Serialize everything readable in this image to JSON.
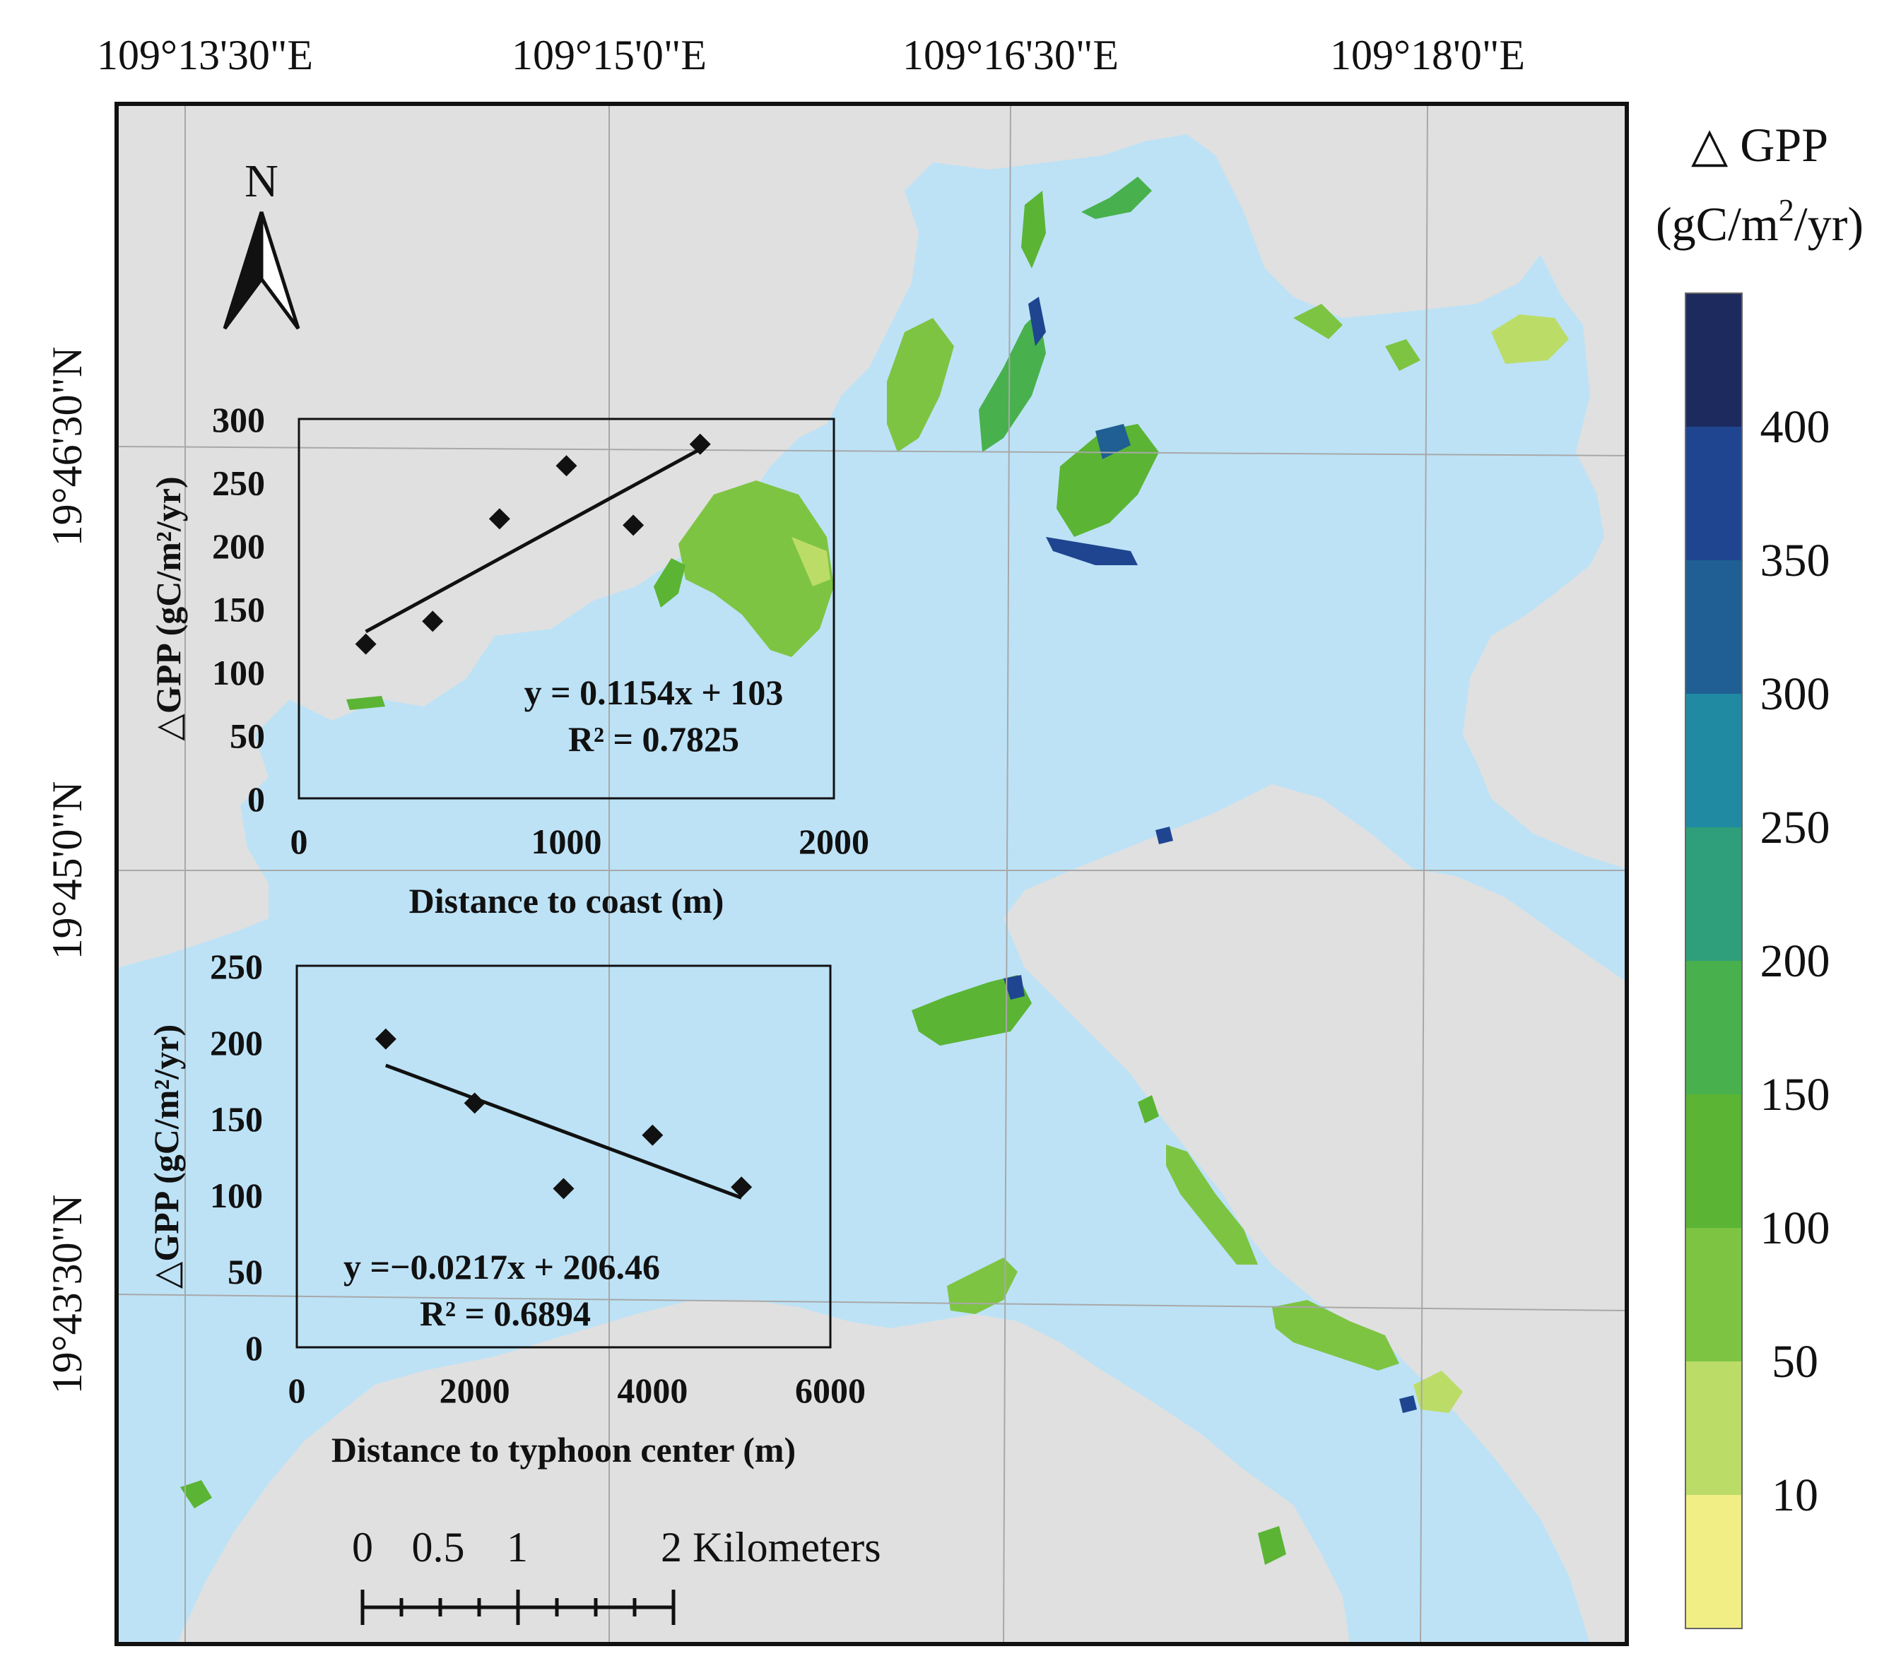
{
  "map": {
    "lon_labels": [
      "109°13'30\"E",
      "109°15'0\"E",
      "109°16'30\"E",
      "109°18'0\"E"
    ],
    "lat_labels": [
      "19°46'30\"N",
      "19°45'0\"N",
      "19°43'30\"N"
    ],
    "north_label": "N",
    "scale_ticks": [
      "0",
      "0.5",
      "1",
      "2 Kilometers"
    ],
    "colors": {
      "land": "#e0e0e0",
      "water": "#bde2f6",
      "grid": "#a8a8a8"
    }
  },
  "legend": {
    "title": "△ GPP",
    "unit_prefix": "(gC/m",
    "unit_sup": "2",
    "unit_suffix": "/yr)",
    "labels": [
      "400",
      "350",
      "300",
      "250",
      "200",
      "150",
      "100",
      "50",
      "10"
    ],
    "colors": [
      "#1c2a5e",
      "#1f4590",
      "#1f5f93",
      "#1f8aa2",
      "#2f9e7b",
      "#48b14d",
      "#5bb434",
      "#7ec443",
      "#bcdc68",
      "#f1ee85"
    ]
  },
  "chart_data": [
    {
      "type": "scatter",
      "xlabel": "Distance to coast (m)",
      "ylabel": "△GPP (gC/m²/yr)",
      "xlim": [
        0,
        2000
      ],
      "ylim": [
        0,
        300
      ],
      "xticks": [
        "0",
        "1000",
        "2000"
      ],
      "yticks": [
        "0",
        "50",
        "100",
        "150",
        "200",
        "250",
        "300"
      ],
      "points": [
        {
          "x": 250,
          "y": 122
        },
        {
          "x": 500,
          "y": 140
        },
        {
          "x": 750,
          "y": 221
        },
        {
          "x": 1000,
          "y": 263
        },
        {
          "x": 1250,
          "y": 216
        },
        {
          "x": 1500,
          "y": 280
        }
      ],
      "trendline": {
        "slope": 0.1154,
        "intercept": 103,
        "x_range": [
          250,
          1500
        ]
      },
      "equation": "y = 0.1154x + 103",
      "r2": "R² = 0.7825"
    },
    {
      "type": "scatter",
      "xlabel": "Distance to typhoon center (m)",
      "ylabel": "△GPP (gC/m²/yr)",
      "xlim": [
        0,
        6000
      ],
      "ylim": [
        0,
        250
      ],
      "xticks": [
        "0",
        "2000",
        "4000",
        "6000"
      ],
      "yticks": [
        "0",
        "50",
        "100",
        "150",
        "200",
        "250"
      ],
      "points": [
        {
          "x": 1000,
          "y": 202
        },
        {
          "x": 2000,
          "y": 160
        },
        {
          "x": 3000,
          "y": 104
        },
        {
          "x": 4000,
          "y": 139
        },
        {
          "x": 5000,
          "y": 105
        }
      ],
      "trendline": {
        "slope": -0.0217,
        "intercept": 206.46,
        "x_range": [
          1000,
          5000
        ]
      },
      "equation": "y =−0.0217x + 206.46",
      "r2": "R² = 0.6894"
    }
  ]
}
